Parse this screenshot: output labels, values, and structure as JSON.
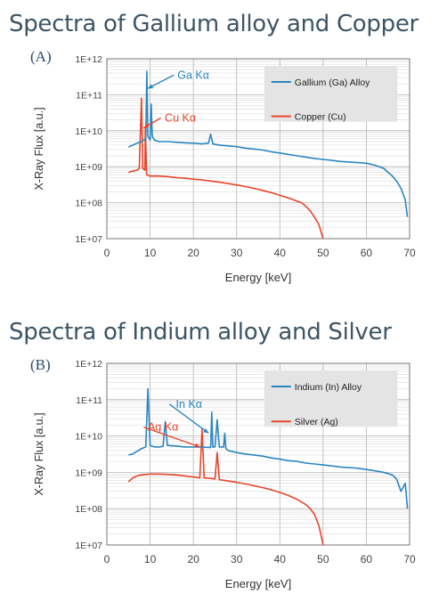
{
  "figures": [
    {
      "heading": "Spectra of Gallium alloy and Copper",
      "panel_label": "(A)"
    },
    {
      "heading": "Spectra of Indium alloy and Silver",
      "panel_label": "(B)"
    }
  ],
  "colors": {
    "blue": "#2b86c0",
    "red": "#e8452a",
    "grid": "#c8c8c8",
    "axis": "#777777",
    "legend_bg": "#e4e4e4"
  },
  "chart_data": [
    {
      "type": "line",
      "log_y": true,
      "xlabel": "Energy [keV]",
      "ylabel": "X-Ray Flux [a.u.]",
      "xlim": [
        0,
        70
      ],
      "ylim": [
        10000000,
        1000000000000
      ],
      "x_ticks": [
        "0",
        "10",
        "20",
        "30",
        "40",
        "50",
        "60",
        "70"
      ],
      "y_ticks": [
        "1E+07",
        "1E+08",
        "1E+09",
        "1E+10",
        "1E+11",
        "1E+12"
      ],
      "grid": true,
      "legend_position": "top-right",
      "series": [
        {
          "name": "Gallium (Ga) Alloy",
          "color": "#2b86c0",
          "points": [
            [
              5,
              3500000000.0
            ],
            [
              6,
              4000000000.0
            ],
            [
              7,
              4500000000.0
            ],
            [
              8,
              5000000000.0
            ],
            [
              8.5,
              5500000000.0
            ],
            [
              9,
              6000000000.0
            ],
            [
              9.25,
              450000000000.0
            ],
            [
              9.5,
              7000000000.0
            ],
            [
              10,
              5500000000.0
            ],
            [
              10.25,
              55000000000.0
            ],
            [
              10.5,
              7000000000.0
            ],
            [
              11,
              5500000000.0
            ],
            [
              12,
              5000000000.0
            ],
            [
              14,
              5000000000.0
            ],
            [
              16,
              4800000000.0
            ],
            [
              18,
              4600000000.0
            ],
            [
              20,
              4500000000.0
            ],
            [
              22,
              4300000000.0
            ],
            [
              23.5,
              4500000000.0
            ],
            [
              24,
              8000000000.0
            ],
            [
              24.5,
              4300000000.0
            ],
            [
              26,
              4000000000.0
            ],
            [
              28,
              3800000000.0
            ],
            [
              30,
              3600000000.0
            ],
            [
              32,
              3300000000.0
            ],
            [
              34,
              3100000000.0
            ],
            [
              36,
              2900000000.0
            ],
            [
              38,
              2600000000.0
            ],
            [
              40,
              2400000000.0
            ],
            [
              42,
              2200000000.0
            ],
            [
              44,
              2000000000.0
            ],
            [
              46,
              1850000000.0
            ],
            [
              48,
              1700000000.0
            ],
            [
              50,
              1600000000.0
            ],
            [
              52,
              1500000000.0
            ],
            [
              54,
              1400000000.0
            ],
            [
              56,
              1350000000.0
            ],
            [
              58,
              1300000000.0
            ],
            [
              60,
              1250000000.0
            ],
            [
              62,
              1100000000.0
            ],
            [
              64,
              900000000.0
            ],
            [
              65,
              700000000.0
            ],
            [
              66,
              550000000.0
            ],
            [
              67,
              400000000.0
            ],
            [
              68,
              250000000.0
            ],
            [
              69,
              120000000.0
            ],
            [
              69.5,
              40000000.0
            ]
          ]
        },
        {
          "name": "Copper (Cu)",
          "color": "#e8452a",
          "points": [
            [
              5,
              700000000.0
            ],
            [
              6,
              750000000.0
            ],
            [
              7,
              800000000.0
            ],
            [
              7.5,
              900000000.0
            ],
            [
              8,
              80000000000.0
            ],
            [
              8.3,
              900000000.0
            ],
            [
              8.8,
              800000000.0
            ],
            [
              8.9,
              13000000000.0
            ],
            [
              9.2,
              600000000.0
            ],
            [
              10,
              550000000.0
            ],
            [
              12,
              550000000.0
            ],
            [
              14,
              530000000.0
            ],
            [
              16,
              500000000.0
            ],
            [
              18,
              480000000.0
            ],
            [
              20,
              450000000.0
            ],
            [
              22,
              430000000.0
            ],
            [
              24,
              400000000.0
            ],
            [
              26,
              370000000.0
            ],
            [
              28,
              340000000.0
            ],
            [
              30,
              310000000.0
            ],
            [
              32,
              280000000.0
            ],
            [
              34,
              250000000.0
            ],
            [
              36,
              220000000.0
            ],
            [
              38,
              190000000.0
            ],
            [
              40,
              160000000.0
            ],
            [
              42,
              135000000.0
            ],
            [
              44,
              110000000.0
            ],
            [
              45,
              100000000.0
            ],
            [
              46,
              80000000.0
            ],
            [
              47,
              60000000.0
            ],
            [
              48,
              40000000.0
            ],
            [
              49,
              25000000.0
            ],
            [
              50,
              10000000.0
            ]
          ]
        }
      ],
      "annotations": [
        {
          "text": "Ga Kα",
          "color": "#2b86c0",
          "x": 20,
          "y": 280000000000.0,
          "arrow_x": 9.5,
          "arrow_y": 150000000000.0
        },
        {
          "text": "Cu Kα",
          "color": "#e8452a",
          "x": 17,
          "y": 18000000000.0,
          "arrow_x": 8.5,
          "arrow_y": 12000000000.0
        }
      ]
    },
    {
      "type": "line",
      "log_y": true,
      "xlabel": "Energy [keV]",
      "ylabel": "X-Ray Flux [a.u.]",
      "xlim": [
        0,
        70
      ],
      "ylim": [
        10000000,
        1000000000000
      ],
      "x_ticks": [
        "0",
        "10",
        "20",
        "30",
        "40",
        "50",
        "60",
        "70"
      ],
      "y_ticks": [
        "1E+07",
        "1E+08",
        "1E+09",
        "1E+10",
        "1E+11",
        "1E+12"
      ],
      "grid": true,
      "legend_position": "top-right",
      "series": [
        {
          "name": "Indium (In) Alloy",
          "color": "#2b86c0",
          "points": [
            [
              5,
              3000000000.0
            ],
            [
              6,
              3200000000.0
            ],
            [
              7,
              3800000000.0
            ],
            [
              8,
              4500000000.0
            ],
            [
              9,
              5000000000.0
            ],
            [
              9.5,
              200000000000.0
            ],
            [
              10,
              5500000000.0
            ],
            [
              11,
              5000000000.0
            ],
            [
              12,
              5000000000.0
            ],
            [
              13,
              5200000000.0
            ],
            [
              13.5,
              25000000000.0
            ],
            [
              14,
              5500000000.0
            ],
            [
              16,
              5300000000.0
            ],
            [
              18,
              5000000000.0
            ],
            [
              20,
              5000000000.0
            ],
            [
              22,
              5000000000.0
            ],
            [
              24,
              4800000000.0
            ],
            [
              24.25,
              45000000000.0
            ],
            [
              24.5,
              5000000000.0
            ],
            [
              25,
              5000000000.0
            ],
            [
              25.5,
              28000000000.0
            ],
            [
              26,
              5000000000.0
            ],
            [
              27,
              5000000000.0
            ],
            [
              27.25,
              12000000000.0
            ],
            [
              27.5,
              4500000000.0
            ],
            [
              28,
              4000000000.0
            ],
            [
              30,
              3500000000.0
            ],
            [
              32,
              3200000000.0
            ],
            [
              34,
              3000000000.0
            ],
            [
              36,
              2800000000.0
            ],
            [
              38,
              2500000000.0
            ],
            [
              40,
              2300000000.0
            ],
            [
              42,
              2100000000.0
            ],
            [
              44,
              2000000000.0
            ],
            [
              46,
              1800000000.0
            ],
            [
              48,
              1700000000.0
            ],
            [
              50,
              1600000000.0
            ],
            [
              52,
              1500000000.0
            ],
            [
              54,
              1400000000.0
            ],
            [
              56,
              1350000000.0
            ],
            [
              58,
              1300000000.0
            ],
            [
              60,
              1200000000.0
            ],
            [
              62,
              1100000000.0
            ],
            [
              64,
              1000000000.0
            ],
            [
              66,
              850000000.0
            ],
            [
              67,
              650000000.0
            ],
            [
              68,
              300000000.0
            ],
            [
              69,
              500000000.0
            ],
            [
              69.5,
              100000000.0
            ]
          ]
        },
        {
          "name": "Silver (Ag)",
          "color": "#e8452a",
          "points": [
            [
              5,
              550000000.0
            ],
            [
              6,
              700000000.0
            ],
            [
              7,
              800000000.0
            ],
            [
              8,
              850000000.0
            ],
            [
              10,
              900000000.0
            ],
            [
              12,
              900000000.0
            ],
            [
              14,
              880000000.0
            ],
            [
              16,
              850000000.0
            ],
            [
              18,
              800000000.0
            ],
            [
              20,
              750000000.0
            ],
            [
              21.5,
              700000000.0
            ],
            [
              22,
              15000000000.0
            ],
            [
              22.5,
              700000000.0
            ],
            [
              24,
              680000000.0
            ],
            [
              25,
              650000000.0
            ],
            [
              25.5,
              3500000000.0
            ],
            [
              26,
              630000000.0
            ],
            [
              28,
              580000000.0
            ],
            [
              30,
              530000000.0
            ],
            [
              32,
              480000000.0
            ],
            [
              34,
              430000000.0
            ],
            [
              36,
              380000000.0
            ],
            [
              38,
              330000000.0
            ],
            [
              40,
              280000000.0
            ],
            [
              42,
              230000000.0
            ],
            [
              44,
              180000000.0
            ],
            [
              46,
              130000000.0
            ],
            [
              47,
              100000000.0
            ],
            [
              48,
              70000000.0
            ],
            [
              49,
              35000000.0
            ],
            [
              49.7,
              15000000.0
            ],
            [
              50,
              10000000.0
            ]
          ]
        }
      ],
      "annotations": [
        {
          "text": "In Kα",
          "color": "#2b86c0",
          "x": 19,
          "y": 60000000000.0,
          "arrow_x": 23.5,
          "arrow_y": 12000000000.0
        },
        {
          "text": "Ag Kα",
          "color": "#e8452a",
          "x": 13,
          "y": 14000000000.0,
          "arrow_x": 21.5,
          "arrow_y": 5000000000.0
        }
      ]
    }
  ]
}
